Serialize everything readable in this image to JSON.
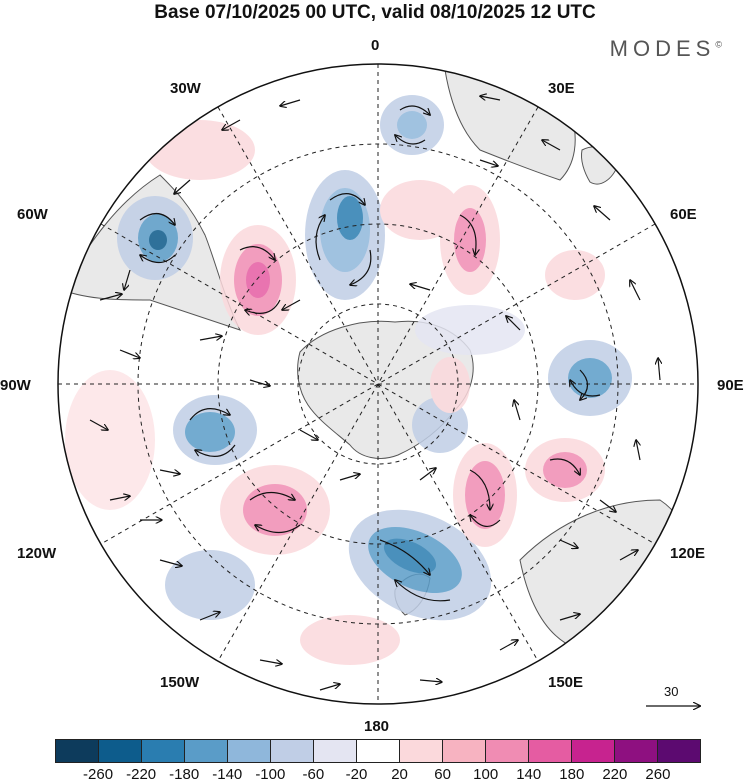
{
  "title": "Base 07/10/2025 00 UTC, valid 08/10/2025 12 UTC",
  "brand": "MODES",
  "brand_mark": "©",
  "longitude_labels": {
    "top": "0",
    "top_right": "30E",
    "right_upper": "60E",
    "right": "90E",
    "right_lower": "120E",
    "bottom_right": "150E",
    "bottom": "180",
    "bottom_left": "150W",
    "left_lower": "120W",
    "left": "90W",
    "left_upper": "60W",
    "top_left": "30W"
  },
  "reference_vector": {
    "label": "30"
  },
  "colorbar": {
    "colors": [
      "#0d3b5c",
      "#0d5c8c",
      "#2a7db0",
      "#5a9cc8",
      "#8fb7db",
      "#c0cee6",
      "#e4e5f2",
      "#ffffff",
      "#fbd9dc",
      "#f7b3c1",
      "#f08cb3",
      "#e55ca2",
      "#c7238f",
      "#8e1080",
      "#5c0a70"
    ],
    "ticks": [
      "-260",
      "-220",
      "-180",
      "-140",
      "-100",
      "-60",
      "-20",
      "20",
      "60",
      "100",
      "140",
      "180",
      "220",
      "260"
    ]
  },
  "colors": {
    "land": "#e9e9e9",
    "coast": "#555555",
    "positive": "#f08cb3",
    "negative": "#5a9cc8"
  }
}
